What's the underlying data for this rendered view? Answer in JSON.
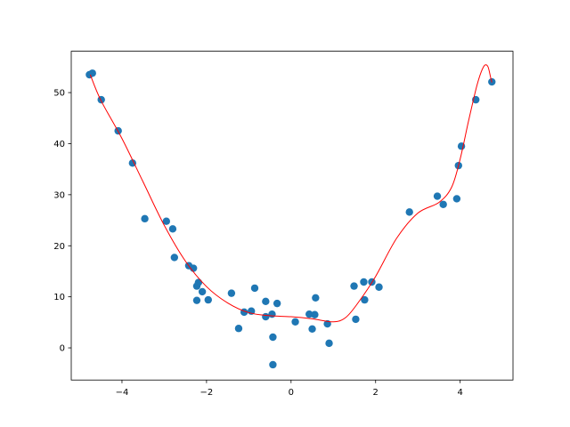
{
  "chart_data": {
    "type": "scatter",
    "title": "",
    "xlabel": "",
    "ylabel": "",
    "xlim": [
      -5.2,
      5.25
    ],
    "ylim": [
      -6.3,
      58.1
    ],
    "xticks": [
      -4,
      -2,
      0,
      2,
      4
    ],
    "yticks": [
      0,
      10,
      20,
      30,
      40,
      50
    ],
    "grid": false,
    "colors": {
      "points": "#1f77b4",
      "curve": "#ff0000"
    },
    "points": [
      [
        -4.77,
        53.5
      ],
      [
        -4.7,
        53.8
      ],
      [
        -4.49,
        48.6
      ],
      [
        -4.09,
        42.5
      ],
      [
        -3.75,
        36.2
      ],
      [
        -3.46,
        25.3
      ],
      [
        -2.95,
        24.8
      ],
      [
        -2.8,
        23.3
      ],
      [
        -2.76,
        17.7
      ],
      [
        -2.42,
        16.1
      ],
      [
        -2.31,
        15.6
      ],
      [
        -2.19,
        12.8
      ],
      [
        -2.23,
        12.1
      ],
      [
        -2.23,
        9.3
      ],
      [
        -2.1,
        11.0
      ],
      [
        -1.96,
        9.4
      ],
      [
        -1.41,
        10.7
      ],
      [
        -1.24,
        3.8
      ],
      [
        -1.11,
        7.0
      ],
      [
        -0.94,
        7.2
      ],
      [
        -0.86,
        11.7
      ],
      [
        -0.6,
        9.1
      ],
      [
        -0.6,
        6.1
      ],
      [
        -0.45,
        6.6
      ],
      [
        -0.43,
        2.1
      ],
      [
        -0.43,
        -3.3
      ],
      [
        -0.33,
        8.7
      ],
      [
        0.1,
        5.1
      ],
      [
        0.43,
        6.6
      ],
      [
        0.5,
        3.7
      ],
      [
        0.56,
        6.5
      ],
      [
        0.58,
        9.8
      ],
      [
        0.86,
        4.7
      ],
      [
        0.9,
        0.9
      ],
      [
        1.49,
        12.1
      ],
      [
        1.53,
        5.6
      ],
      [
        1.72,
        12.9
      ],
      [
        1.74,
        9.4
      ],
      [
        1.91,
        12.9
      ],
      [
        2.08,
        11.9
      ],
      [
        2.8,
        26.6
      ],
      [
        3.46,
        29.7
      ],
      [
        3.6,
        28.1
      ],
      [
        3.92,
        29.2
      ],
      [
        3.96,
        35.7
      ],
      [
        4.03,
        39.5
      ],
      [
        4.37,
        48.6
      ],
      [
        4.75,
        52.1
      ]
    ],
    "curve": [
      [
        -4.75,
        53.5
      ],
      [
        -4.5,
        48.5
      ],
      [
        -4.0,
        41.0
      ],
      [
        -3.5,
        32.5
      ],
      [
        -3.0,
        24.0
      ],
      [
        -2.5,
        17.0
      ],
      [
        -2.0,
        12.0
      ],
      [
        -1.5,
        8.8
      ],
      [
        -1.0,
        6.9
      ],
      [
        -0.5,
        6.3
      ],
      [
        0,
        6.1
      ],
      [
        0.5,
        5.7
      ],
      [
        1.0,
        5.1
      ],
      [
        1.3,
        6.0
      ],
      [
        1.6,
        9.0
      ],
      [
        2.0,
        14.0
      ],
      [
        2.5,
        21.5
      ],
      [
        3.0,
        26.4
      ],
      [
        3.5,
        28.5
      ],
      [
        3.8,
        31.5
      ],
      [
        4.0,
        37.0
      ],
      [
        4.2,
        44.5
      ],
      [
        4.4,
        51.5
      ],
      [
        4.55,
        55.0
      ],
      [
        4.65,
        55.2
      ],
      [
        4.72,
        53.0
      ],
      [
        4.75,
        52.0
      ]
    ]
  }
}
